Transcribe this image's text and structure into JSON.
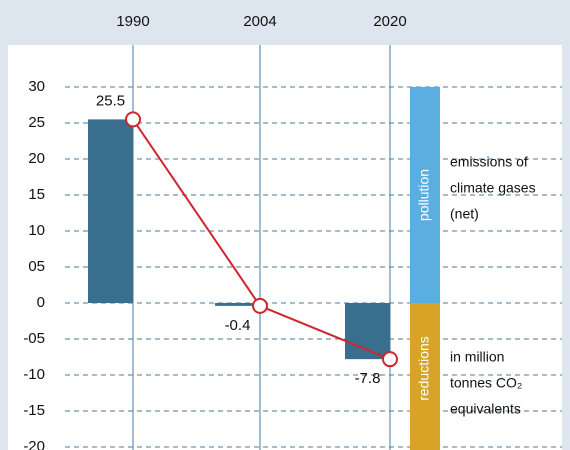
{
  "chart_data": {
    "type": "bar",
    "categories": [
      "1990",
      "2004",
      "2020"
    ],
    "values": [
      25.5,
      -0.4,
      -7.8
    ],
    "color": "#3a6e8f",
    "line_color": "#d0262e",
    "line_overlay": true,
    "ylim": [
      -20,
      30
    ],
    "yticks": [
      30,
      25,
      20,
      15,
      10,
      {
        "value": 5,
        "label": "05"
      },
      0,
      {
        "value": -5,
        "label": "-05"
      },
      -10,
      -15,
      -20
    ],
    "grid": true,
    "bands": [
      {
        "label": "pollution",
        "color": "#5aaee0"
      },
      {
        "label": "reductions",
        "color": "#d8a428"
      }
    ],
    "annotations": [
      [
        "emissions of",
        "climate gases",
        "(net)"
      ],
      [
        "in million",
        "tonnes CO₂",
        "equivalents"
      ]
    ]
  }
}
